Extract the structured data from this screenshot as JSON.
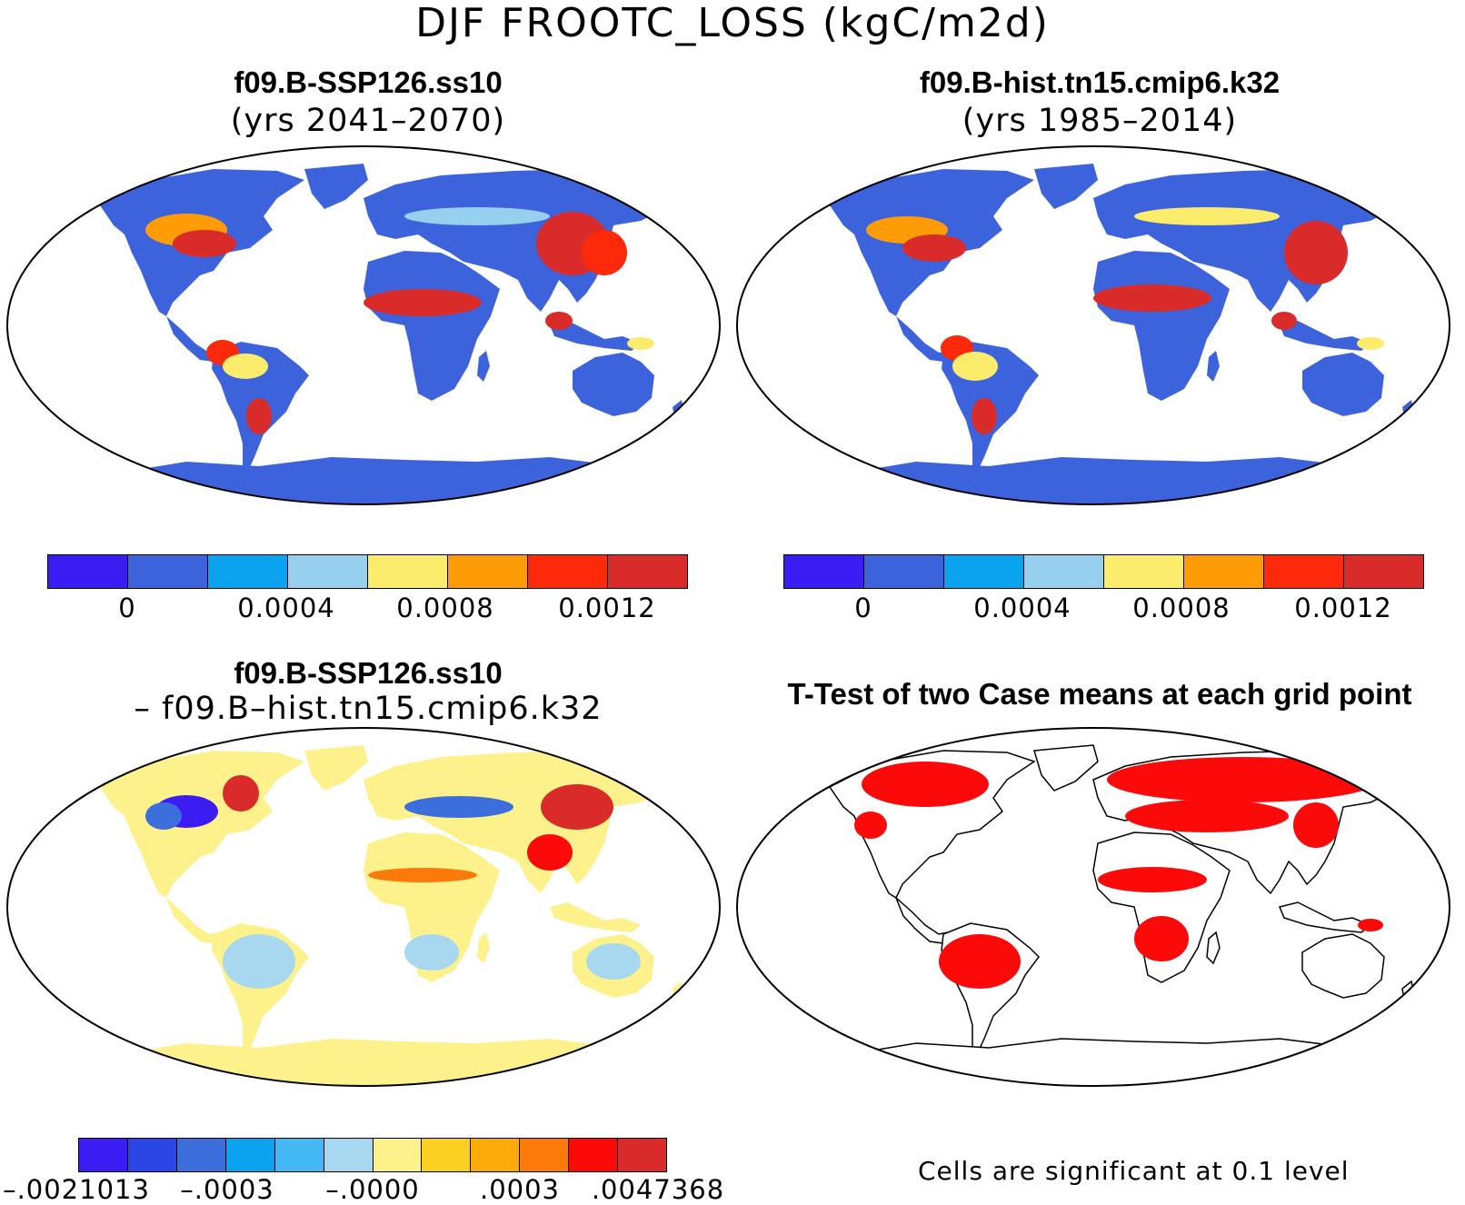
{
  "title": "DJF FROOTC_LOSS (kgC/m2d)",
  "panels": [
    {
      "title": "f09.B-SSP126.ss10",
      "subtitle": "(yrs 2041–2070)"
    },
    {
      "title": "f09.B-hist.tn15.cmip6.k32",
      "subtitle": "(yrs 1985–2014)"
    },
    {
      "title": "f09.B-SSP126.ss10",
      "subtitle": "– f09.B–hist.tn15.cmip6.k32"
    },
    {
      "title": "T-Test of two Case means at each grid point",
      "subtitle": ""
    }
  ],
  "colorbars": {
    "abs": {
      "colors": [
        "#3b1cf2",
        "#3d63dc",
        "#0ba2f0",
        "#97cfef",
        "#fcec6b",
        "#fd9c06",
        "#fc2a0a",
        "#d92b2a"
      ],
      "ticks": [
        "0",
        "0.0004",
        "0.0008",
        "0.0012"
      ]
    },
    "diff": {
      "colors": [
        "#3b1cf2",
        "#2c46e6",
        "#3d6fdc",
        "#0ba2f0",
        "#45b9f3",
        "#a7d8ef",
        "#fdf18c",
        "#fcd022",
        "#fcab0a",
        "#fb7a0a",
        "#fc0a0a",
        "#d92b2a"
      ],
      "ticks": [
        ".0021013",
        ".0003",
        ".0000",
        ".0003",
        ".0047368"
      ],
      "tick_signs": [
        "–",
        "–",
        "–",
        "",
        ""
      ]
    }
  },
  "note": "Cells are significant at 0.1 level",
  "colors": {
    "land_abs": "#3d63dc",
    "hot": "#d92b2a",
    "diff_base": "#fdf18c",
    "diff_light_blue": "#a7d8ef",
    "sig_red": "#fc0a0a"
  }
}
